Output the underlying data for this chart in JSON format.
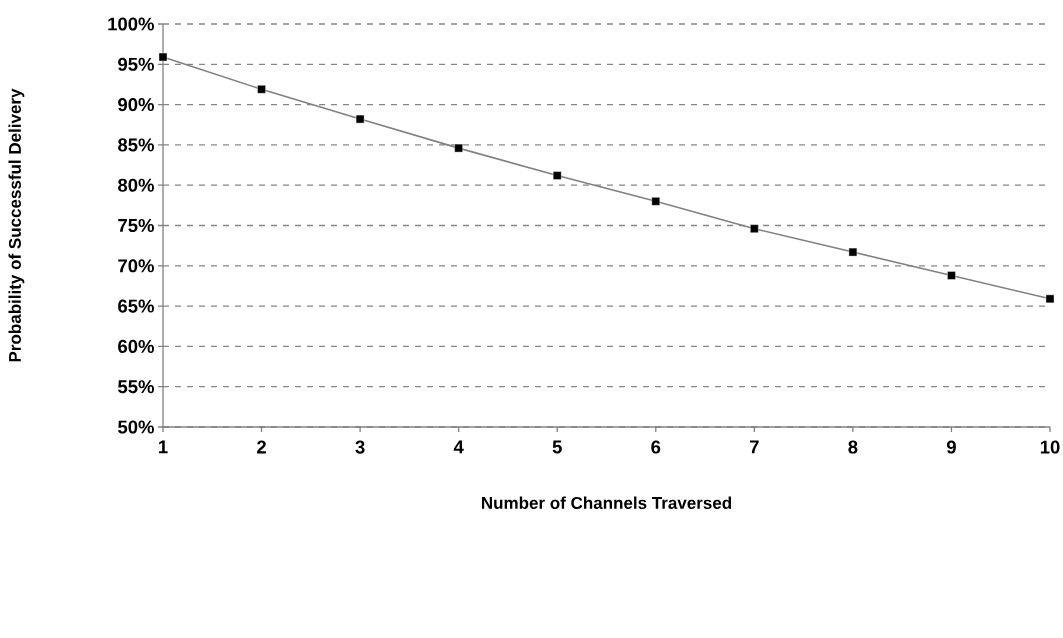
{
  "chart_data": {
    "type": "line",
    "xlabel": "Number of Channels Traversed",
    "ylabel": "Probability of Successful Delivery",
    "x": [
      1,
      2,
      3,
      4,
      5,
      6,
      7,
      8,
      9,
      10
    ],
    "series": [
      {
        "color": "#808080",
        "values": [
          95.9,
          91.9,
          88.2,
          84.6,
          81.2,
          78.0,
          74.6,
          71.7,
          68.8,
          65.9
        ]
      }
    ],
    "marker": "square",
    "line_style": "solid",
    "grid": "y",
    "xlim": [
      1,
      10
    ],
    "xticks": [
      1,
      2,
      3,
      4,
      5,
      6,
      7,
      8,
      9,
      10
    ],
    "ylim": [
      50,
      100
    ],
    "yticks": [
      {
        "value": 50,
        "label": "50%"
      },
      {
        "value": 55,
        "label": "55%"
      },
      {
        "value": 60,
        "label": "60%"
      },
      {
        "value": 65,
        "label": "65%"
      },
      {
        "value": 70,
        "label": "70%"
      },
      {
        "value": 75,
        "label": "75%"
      },
      {
        "value": 80,
        "label": "80%"
      },
      {
        "value": 85,
        "label": "85%"
      },
      {
        "value": 90,
        "label": "90%"
      },
      {
        "value": 95,
        "label": "95%"
      },
      {
        "value": 100,
        "label": "100%"
      }
    ]
  }
}
